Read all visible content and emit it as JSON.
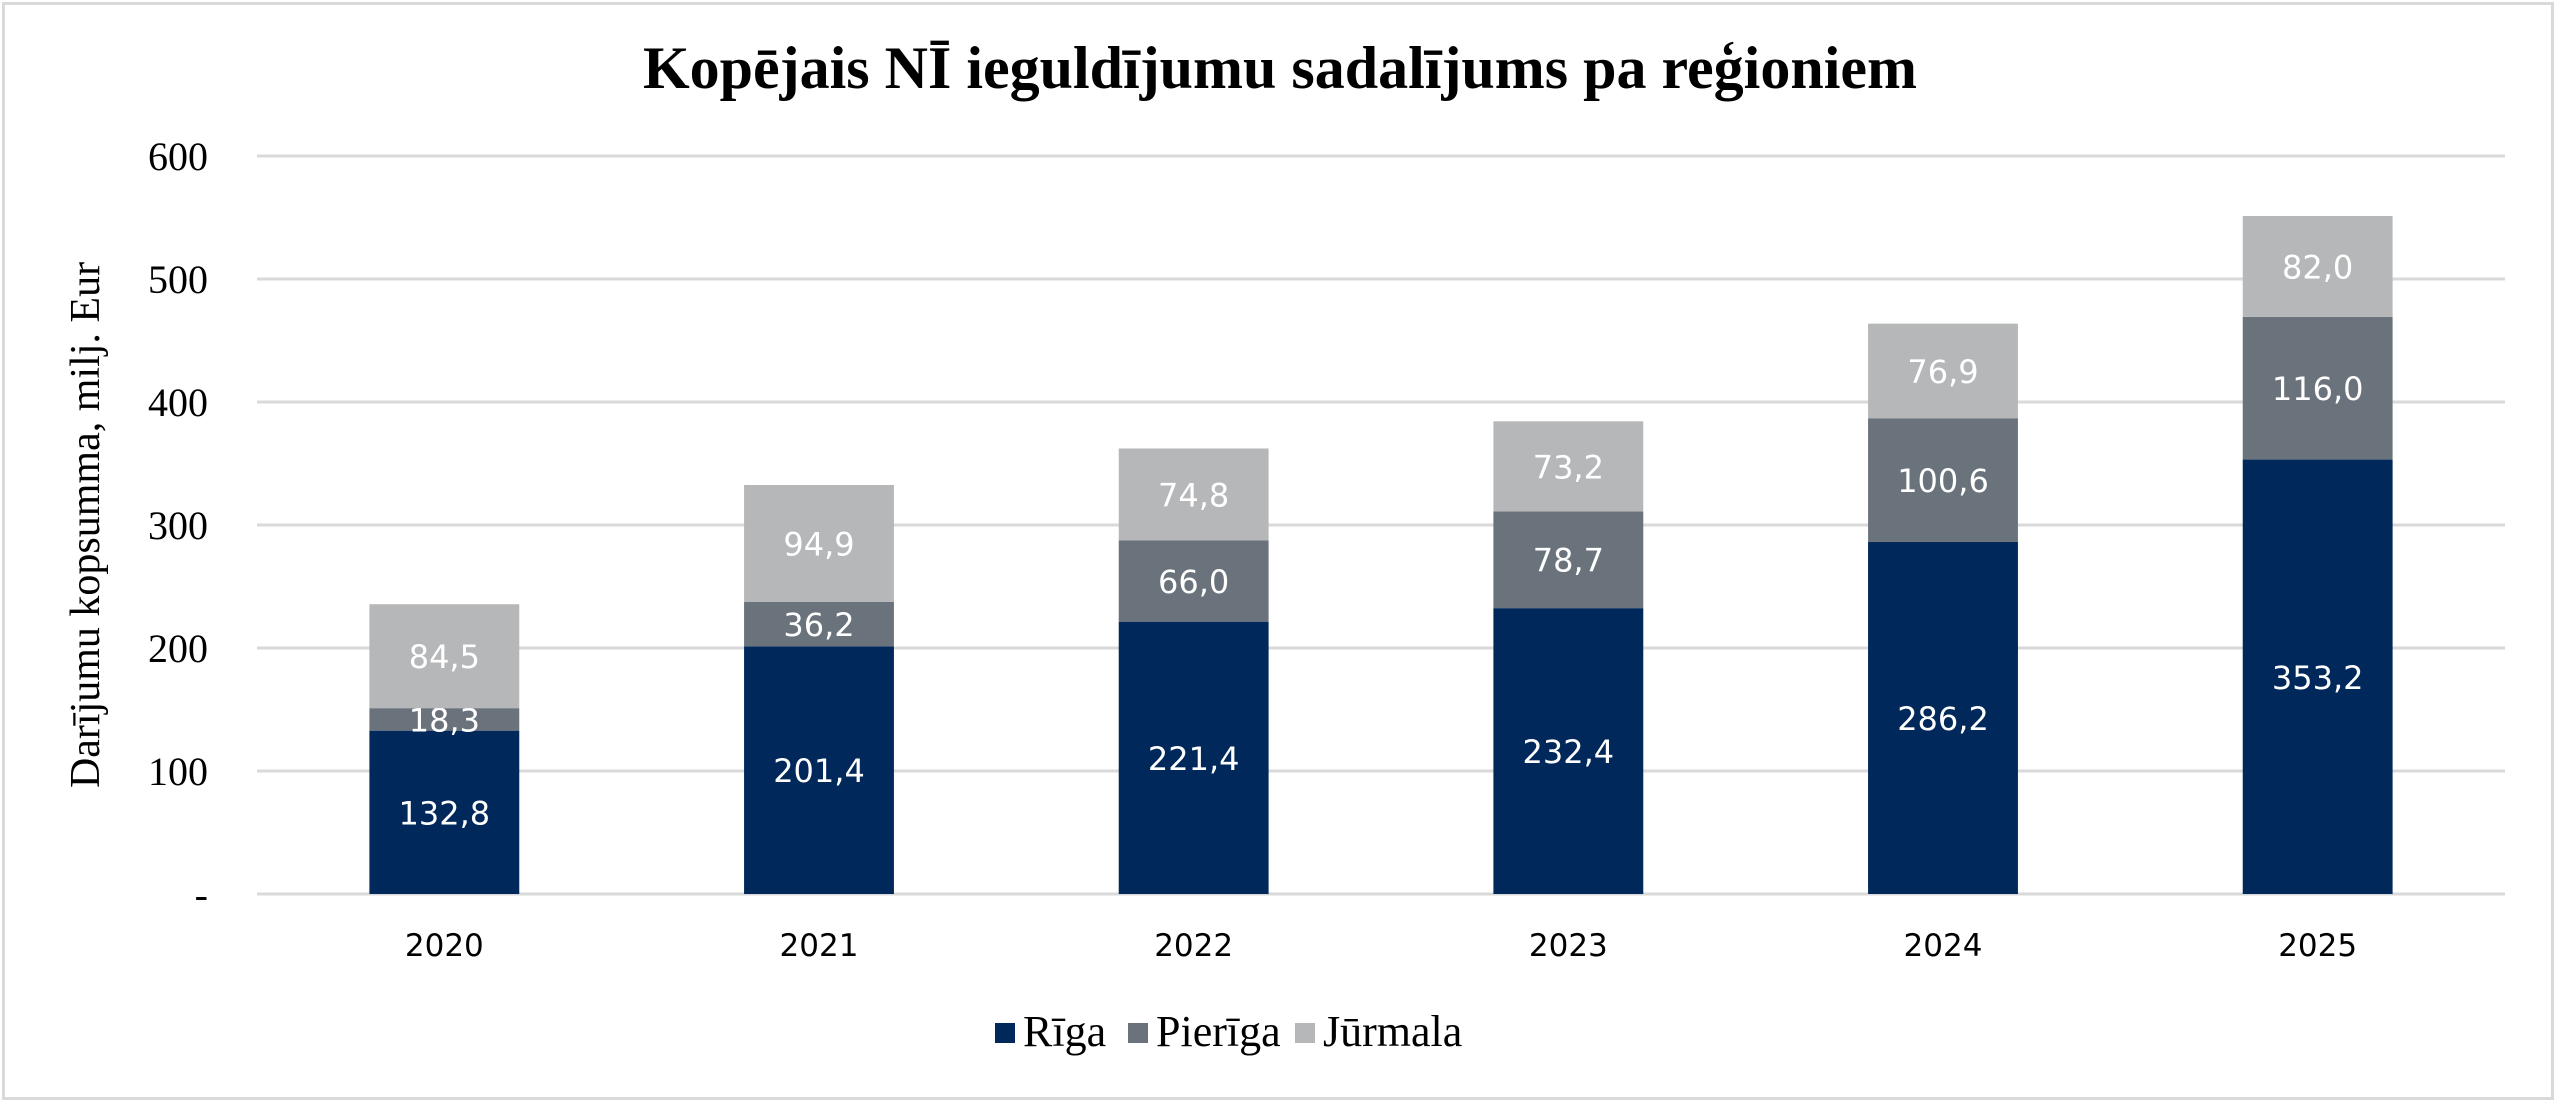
{
  "chart_data": {
    "type": "bar",
    "stacked": true,
    "title": "Kopējais NĪ ieguldījumu sadalījums pa reģioniem",
    "xlabel": "",
    "ylabel": "Darījumu kopsumma, milj. Eur",
    "ylim": [
      0,
      600
    ],
    "yticks": [
      0,
      100,
      200,
      300,
      400,
      500,
      600
    ],
    "ytick_labels": [
      "-",
      "100",
      "200",
      "300",
      "400",
      "500",
      "600"
    ],
    "grid": true,
    "legend_position": "bottom",
    "categories": [
      "2020",
      "2021",
      "2022",
      "2023",
      "2024",
      "2025"
    ],
    "series": [
      {
        "name": "Rīga",
        "color": "#00285A",
        "values": [
          132.8,
          201.4,
          221.4,
          232.4,
          286.2,
          353.2
        ],
        "labels": [
          "132,8",
          "201,4",
          "221,4",
          "232,4",
          "286,2",
          "353,2"
        ]
      },
      {
        "name": "Pierīga",
        "color": "#6A737C",
        "values": [
          18.3,
          36.2,
          66.0,
          78.7,
          100.6,
          116.0
        ],
        "labels": [
          "18,3",
          "36,2",
          "66,0",
          "78,7",
          "100,6",
          "116,0"
        ]
      },
      {
        "name": "Jūrmala",
        "color": "#B6B7B9",
        "values": [
          84.5,
          94.9,
          74.8,
          73.2,
          76.9,
          82.0
        ],
        "labels": [
          "84,5",
          "94,9",
          "74,8",
          "73,2",
          "76,9",
          "82,0"
        ]
      }
    ]
  }
}
